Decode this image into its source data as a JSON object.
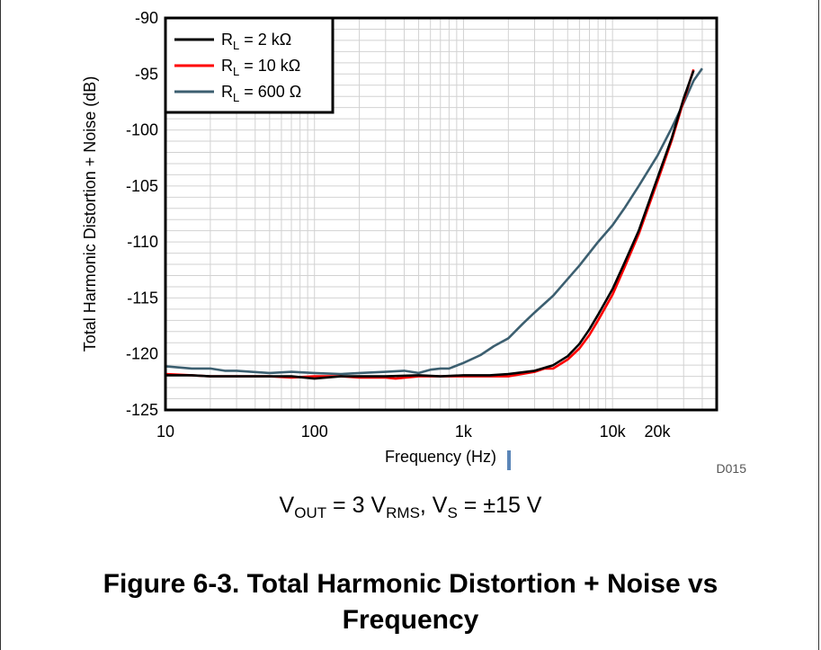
{
  "chart_data": {
    "type": "line",
    "title": "",
    "xlabel": "Frequency (Hz)",
    "ylabel": "Total Harmonic Distortion + Noise (dB)",
    "xscale": "log",
    "xlim": [
      10,
      50000
    ],
    "ylim": [
      -125,
      -90
    ],
    "grid": true,
    "legend_position": "top-left",
    "x_ticks": [
      10,
      100,
      1000,
      10000,
      20000
    ],
    "x_tick_labels": [
      "10",
      "100",
      "1k",
      "10k",
      "20k"
    ],
    "y_ticks": [
      -90,
      -95,
      -100,
      -105,
      -110,
      -115,
      -120,
      -125
    ],
    "y_tick_labels": [
      "-90",
      "-95",
      "-100",
      "-105",
      "-110",
      "-115",
      "-120",
      "-125"
    ],
    "series": [
      {
        "name": "R_L = 2 kΩ",
        "legend_main": "R",
        "legend_sub": "L",
        "legend_rest": " = 2 kΩ",
        "color": "#000000",
        "points": [
          [
            10,
            -121.9
          ],
          [
            15,
            -121.9
          ],
          [
            20,
            -122.0
          ],
          [
            30,
            -122.0
          ],
          [
            50,
            -122.0
          ],
          [
            70,
            -122.0
          ],
          [
            100,
            -122.2
          ],
          [
            150,
            -122.0
          ],
          [
            200,
            -122.0
          ],
          [
            300,
            -122.0
          ],
          [
            500,
            -121.9
          ],
          [
            700,
            -122.0
          ],
          [
            1000,
            -121.9
          ],
          [
            1500,
            -121.9
          ],
          [
            2000,
            -121.8
          ],
          [
            3000,
            -121.5
          ],
          [
            4000,
            -121.0
          ],
          [
            5000,
            -120.2
          ],
          [
            6000,
            -119.1
          ],
          [
            7000,
            -117.8
          ],
          [
            8000,
            -116.5
          ],
          [
            10000,
            -114.2
          ],
          [
            12000,
            -111.9
          ],
          [
            15000,
            -109.0
          ],
          [
            20000,
            -104.3
          ],
          [
            25000,
            -100.7
          ],
          [
            30000,
            -97.2
          ],
          [
            35000,
            -94.7
          ]
        ]
      },
      {
        "name": "R_L = 10 kΩ",
        "legend_main": "R",
        "legend_sub": "L",
        "legend_rest": " = 10 kΩ",
        "color": "#ff0000",
        "points": [
          [
            10,
            -121.8
          ],
          [
            15,
            -121.9
          ],
          [
            20,
            -122.0
          ],
          [
            30,
            -122.0
          ],
          [
            50,
            -122.0
          ],
          [
            70,
            -122.1
          ],
          [
            100,
            -122.0
          ],
          [
            150,
            -122.0
          ],
          [
            200,
            -122.1
          ],
          [
            300,
            -122.1
          ],
          [
            350,
            -122.2
          ],
          [
            500,
            -122.0
          ],
          [
            700,
            -122.0
          ],
          [
            1000,
            -122.0
          ],
          [
            1500,
            -122.0
          ],
          [
            2000,
            -122.0
          ],
          [
            3000,
            -121.6
          ],
          [
            3500,
            -121.3
          ],
          [
            4000,
            -121.3
          ],
          [
            5000,
            -120.5
          ],
          [
            6000,
            -119.5
          ],
          [
            7000,
            -118.3
          ],
          [
            8000,
            -117.0
          ],
          [
            10000,
            -114.7
          ],
          [
            12000,
            -112.3
          ],
          [
            15000,
            -109.3
          ],
          [
            20000,
            -104.6
          ],
          [
            25000,
            -100.9
          ],
          [
            30000,
            -97.4
          ],
          [
            35000,
            -94.6
          ]
        ]
      },
      {
        "name": "R_L = 600 Ω",
        "legend_main": "R",
        "legend_sub": "L",
        "legend_rest": " = 600 Ω",
        "color": "#3c5f70",
        "points": [
          [
            10,
            -121.1
          ],
          [
            15,
            -121.3
          ],
          [
            20,
            -121.3
          ],
          [
            25,
            -121.5
          ],
          [
            30,
            -121.5
          ],
          [
            50,
            -121.7
          ],
          [
            70,
            -121.6
          ],
          [
            100,
            -121.7
          ],
          [
            150,
            -121.8
          ],
          [
            200,
            -121.7
          ],
          [
            300,
            -121.6
          ],
          [
            400,
            -121.5
          ],
          [
            500,
            -121.7
          ],
          [
            600,
            -121.4
          ],
          [
            700,
            -121.3
          ],
          [
            800,
            -121.3
          ],
          [
            1000,
            -120.8
          ],
          [
            1300,
            -120.1
          ],
          [
            1600,
            -119.3
          ],
          [
            2000,
            -118.6
          ],
          [
            2500,
            -117.3
          ],
          [
            3000,
            -116.3
          ],
          [
            4000,
            -114.8
          ],
          [
            5000,
            -113.3
          ],
          [
            6000,
            -112.1
          ],
          [
            8000,
            -110.0
          ],
          [
            10000,
            -108.5
          ],
          [
            12000,
            -107.0
          ],
          [
            15000,
            -105.0
          ],
          [
            20000,
            -102.3
          ],
          [
            25000,
            -99.8
          ],
          [
            30000,
            -97.6
          ],
          [
            35000,
            -95.6
          ],
          [
            40000,
            -94.5
          ]
        ]
      }
    ]
  },
  "figure": {
    "id_label": "D015",
    "caption": {
      "v": "V",
      "out_sub": "OUT",
      "eq1": " = 3 V",
      "rms_sub": "RMS",
      "comma": ", V",
      "s_sub": "S",
      "eq2": " = ±15 V"
    },
    "title_line1": "Figure 6-3. Total Harmonic Distortion + Noise vs",
    "title_line2": "Frequency"
  }
}
